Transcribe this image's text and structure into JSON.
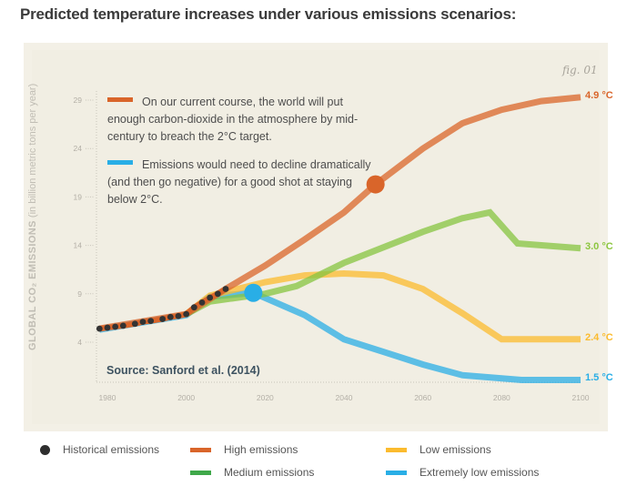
{
  "page": {
    "title": "Predicted temperature increases under various emissions scenarios:"
  },
  "figure": {
    "fig_label": "fig. 01",
    "source": "Source: Sanford et al. (2014)",
    "y_title_bold": "GLOBAL CO₂ EMISSIONS",
    "y_title_light": " (in billion metric tons per year)",
    "annotations": [
      {
        "color": "#d9652a",
        "text": "On our current course, the world will put enough carbon-dioxide in the atmosphere by mid-century to breach the 2°C target."
      },
      {
        "color": "#29aee6",
        "text": "Emissions would need to decline dramatically (and then go negative) for a good shot at staying below 2°C."
      }
    ]
  },
  "chart_data": {
    "type": "line",
    "title": "Predicted temperature increases under various emissions scenarios:",
    "xlabel": "",
    "ylabel": "GLOBAL CO₂ EMISSIONS (in billion metric tons per year)",
    "xlim": [
      1980,
      2100
    ],
    "ylim": [
      4,
      29
    ],
    "x_ticks": [
      1980,
      2000,
      2020,
      2040,
      2060,
      2080,
      2100
    ],
    "y_ticks": [
      4,
      9,
      14,
      19,
      24,
      29
    ],
    "grid": false,
    "legend_position": "bottom",
    "series": [
      {
        "name": "Historical emissions",
        "kind": "points",
        "color": "#333333",
        "points": [
          [
            1978,
            5.4
          ],
          [
            1980,
            5.5
          ],
          [
            1982,
            5.6
          ],
          [
            1984,
            5.7
          ],
          [
            1987,
            5.9
          ],
          [
            1989,
            6.1
          ],
          [
            1991,
            6.2
          ],
          [
            1994,
            6.4
          ],
          [
            1996,
            6.6
          ],
          [
            1998,
            6.7
          ],
          [
            2000,
            6.9
          ],
          [
            2002,
            7.6
          ],
          [
            2004,
            8.1
          ],
          [
            2006,
            8.6
          ],
          [
            2008,
            9.0
          ],
          [
            2010,
            9.5
          ]
        ]
      },
      {
        "name": "High emissions",
        "color": "#d9652a",
        "end_label": "4.9 °C",
        "marker": {
          "x": 2048,
          "y": 20.3
        },
        "points": [
          [
            1978,
            5.4
          ],
          [
            2000,
            6.9
          ],
          [
            2010,
            9.5
          ],
          [
            2020,
            11.9
          ],
          [
            2030,
            14.6
          ],
          [
            2040,
            17.4
          ],
          [
            2048,
            20.3
          ],
          [
            2060,
            24.0
          ],
          [
            2070,
            26.6
          ],
          [
            2080,
            28.0
          ],
          [
            2090,
            28.9
          ],
          [
            2100,
            29.3
          ]
        ]
      },
      {
        "name": "Medium emissions",
        "color": "#86c440",
        "legend_color": "#3fa84a",
        "end_label": "3.0 °C",
        "points": [
          [
            2000,
            6.9
          ],
          [
            2006,
            8.2
          ],
          [
            2020,
            9.0
          ],
          [
            2028,
            9.8
          ],
          [
            2040,
            12.2
          ],
          [
            2060,
            15.4
          ],
          [
            2070,
            16.8
          ],
          [
            2077,
            17.4
          ],
          [
            2084,
            14.2
          ],
          [
            2100,
            13.7
          ]
        ]
      },
      {
        "name": "Low emissions",
        "color": "#fbbb2e",
        "end_label": "2.4 °C",
        "points": [
          [
            2000,
            6.9
          ],
          [
            2006,
            8.8
          ],
          [
            2020,
            10.2
          ],
          [
            2030,
            10.9
          ],
          [
            2040,
            11.1
          ],
          [
            2050,
            10.9
          ],
          [
            2060,
            9.5
          ],
          [
            2070,
            7.0
          ],
          [
            2080,
            4.3
          ],
          [
            2100,
            4.3
          ]
        ]
      },
      {
        "name": "Extremely low emissions",
        "color": "#29aee6",
        "end_label": "1.5 °C",
        "marker": {
          "x": 2017,
          "y": 9.1
        },
        "points": [
          [
            1978,
            5.3
          ],
          [
            2000,
            6.8
          ],
          [
            2006,
            8.7
          ],
          [
            2017,
            9.1
          ],
          [
            2030,
            6.8
          ],
          [
            2040,
            4.3
          ],
          [
            2050,
            3.0
          ],
          [
            2060,
            1.7
          ],
          [
            2070,
            0.6
          ],
          [
            2085,
            0.1
          ],
          [
            2100,
            0.1
          ]
        ]
      }
    ]
  },
  "legend": [
    {
      "label": "Historical emissions",
      "shape": "dot",
      "color": "#2e2e2e"
    },
    {
      "label": "High emissions",
      "shape": "bar",
      "color": "#d9652a"
    },
    {
      "label": "Low emissions",
      "shape": "bar",
      "color": "#fbbb2e"
    },
    {
      "label": "Medium emissions",
      "shape": "bar",
      "color": "#3fa84a"
    },
    {
      "label": "Extremely low emissions",
      "shape": "bar",
      "color": "#29aee6"
    }
  ]
}
